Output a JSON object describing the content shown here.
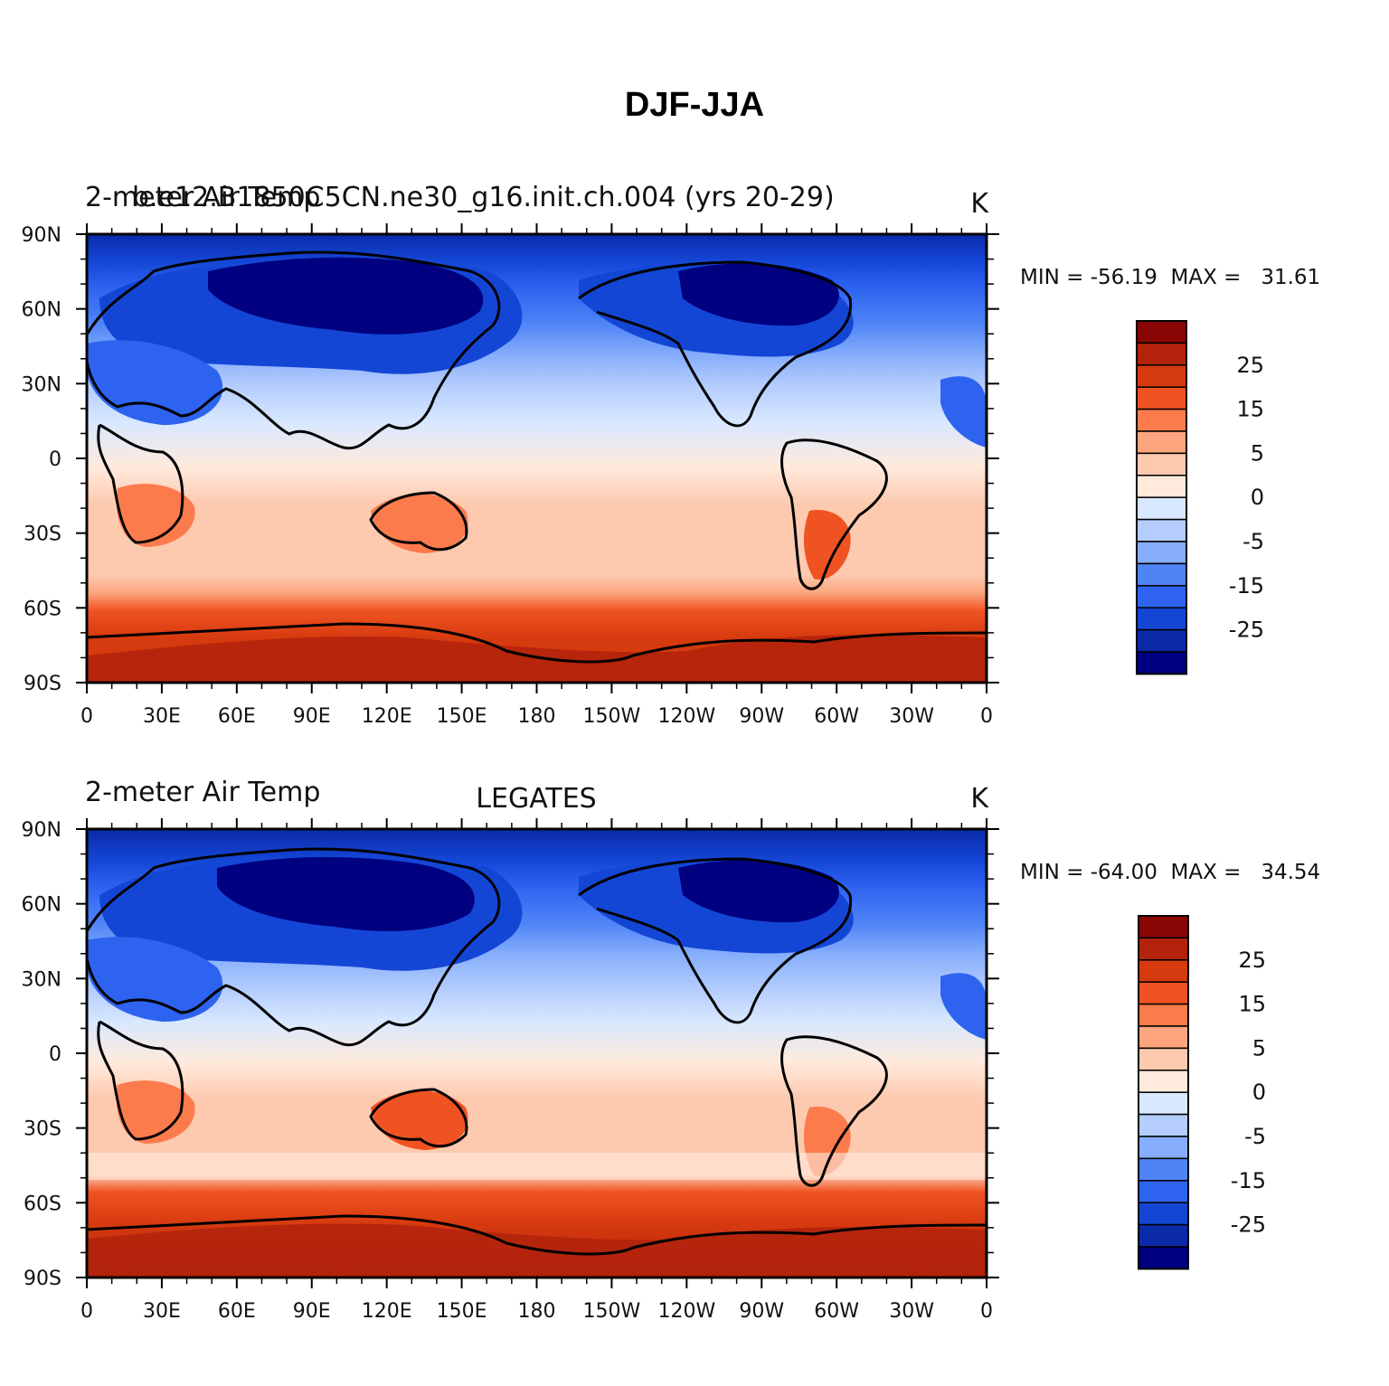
{
  "figure": {
    "title": "DJF-JJA",
    "colors": [
      "#000080",
      "#0b2aa8",
      "#1446d6",
      "#2e63f0",
      "#4f84f7",
      "#86aefc",
      "#b5cdfd",
      "#d8e8ff",
      "#ffeadc",
      "#fdcab0",
      "#fca57e",
      "#fb7b4d",
      "#f05322",
      "#d63a0f",
      "#b3230c",
      "#8a0606"
    ],
    "colorbar_labels": [
      "25",
      "15",
      "5",
      "0",
      "-5",
      "-15",
      "-25"
    ],
    "x_ticks": [
      "0",
      "30E",
      "60E",
      "90E",
      "120E",
      "150E",
      "180",
      "150W",
      "120W",
      "90W",
      "60W",
      "30W",
      "0"
    ],
    "y_ticks": [
      "90N",
      "60N",
      "30N",
      "0",
      "30S",
      "60S",
      "90S"
    ]
  },
  "panels": [
    {
      "id": "model",
      "left_string": "2-meter Air Temp",
      "overlap_string": "b.e12.B1850C5CN.ne30_g16.init.ch.004 (yrs 20-29)",
      "center_string": "",
      "units": "K",
      "stats": "MIN = -56.19  MAX =   31.61"
    },
    {
      "id": "obs",
      "left_string": "2-meter Air Temp",
      "overlap_string": "",
      "center_string": "LEGATES",
      "units": "K",
      "stats": "MIN = -64.00  MAX =   34.54"
    }
  ]
}
